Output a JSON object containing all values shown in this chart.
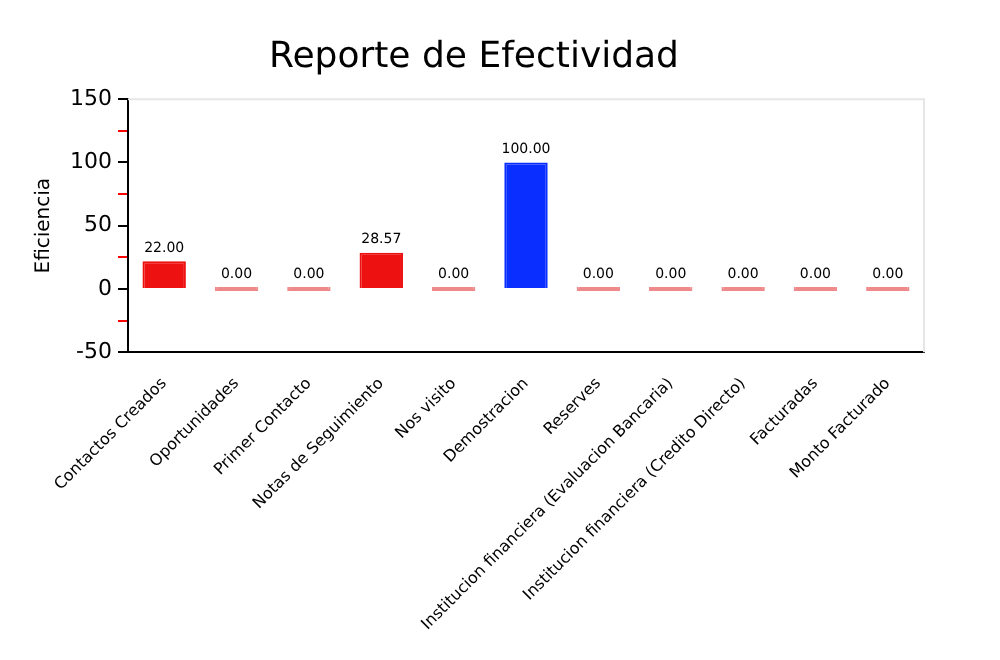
{
  "chart_data": {
    "type": "bar",
    "title": "Reporte de Efectividad",
    "ylabel": "Eficiencia",
    "categories": [
      "Contactos Creados",
      "Oportunidades",
      "Primer Contacto",
      "Notas de Seguimiento",
      "Nos visito",
      "Demostracion",
      "Reserves",
      "Institucion financiera (Evaluacion Bancaria)",
      "Institucion financiera (Credito Directo)",
      "Facturadas",
      "Monto Facturado"
    ],
    "values": [
      22,
      0,
      0,
      28.57,
      0,
      100,
      0,
      0,
      0,
      0,
      0
    ],
    "value_labels": [
      "22.00",
      "0.00",
      "0.00",
      "28.57",
      "0.00",
      "100.00",
      "0.00",
      "0.00",
      "0.00",
      "0.00",
      "0.00"
    ],
    "colors": [
      "#ee1111",
      "#f08a8a",
      "#f08a8a",
      "#ee1111",
      "#f08a8a",
      "#0a2eff",
      "#f08a8a",
      "#f08a8a",
      "#f08a8a",
      "#f08a8a",
      "#f08a8a"
    ],
    "ylim": [
      -50,
      150
    ],
    "yticks": [
      -50,
      {
        "value": -25,
        "label": null
      },
      0,
      {
        "value": 25,
        "label": null
      },
      50,
      {
        "value": 75,
        "label": null
      },
      100,
      {
        "value": 125,
        "label": null
      },
      150
    ],
    "grid": false,
    "legend": false
  }
}
